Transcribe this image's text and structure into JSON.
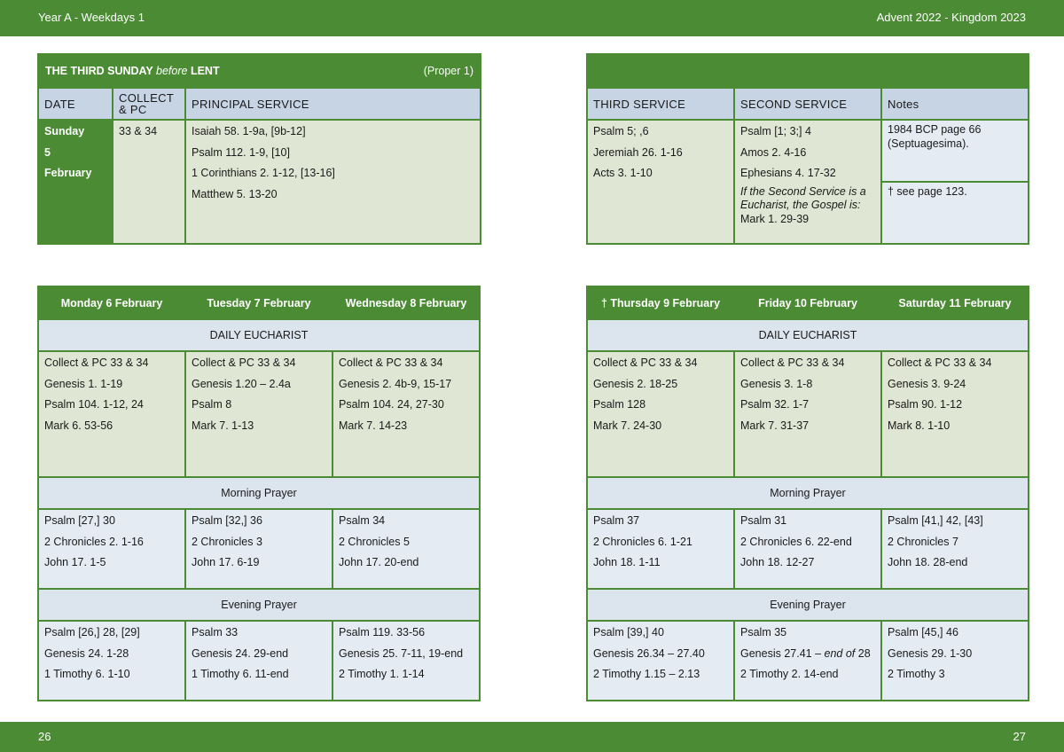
{
  "header": {
    "left": "Year A - Weekdays 1",
    "right": "Advent  2022 - Kingdom 2023"
  },
  "footer": {
    "left": "26",
    "right": "27"
  },
  "sunday": {
    "title_pre": "THE THIRD SUNDAY ",
    "title_em": "before",
    "title_post": " LENT",
    "proper": "(Proper 1)",
    "col_date": "DATE",
    "col_collect_1": "COLLECT",
    "col_collect_2": "& PC",
    "col_principal": "PRINCIPAL SERVICE",
    "date_lines": [
      "Sunday",
      "5",
      "February"
    ],
    "collect": "33 & 34",
    "principal": [
      "Isaiah 58. 1-9a, [9b-12]",
      "Psalm 112. 1-9, [10]",
      "1 Corinthians 2. 1-12, [13-16]",
      "Matthew 5. 13-20"
    ],
    "col_third": "THIRD SERVICE",
    "col_second": "SECOND SERVICE",
    "col_notes": "Notes",
    "third": [
      "Psalm 5; ,6",
      "Jeremiah 26. 1-16",
      "Acts 3. 1-10"
    ],
    "second": [
      "Psalm [1; 3;] 4",
      "Amos 2. 4-16",
      "Ephesians 4. 17-32"
    ],
    "second_note_1": "If the Second Service is a",
    "second_note_2": "Eucharist, the Gospel is:",
    "second_note_3": "Mark 1. 29-39",
    "notes_1a": "1984 BCP page 66",
    "notes_1b": "(Septuagesima).",
    "notes_2": "†  see page 123."
  },
  "weekdays_left": {
    "days": [
      "Monday 6 February",
      "Tuesday 7 February",
      "Wednesday 8 February"
    ],
    "euch_label": "DAILY EUCHARIST",
    "euch": [
      [
        "Collect & PC 33 & 34",
        "Genesis 1. 1-19",
        "Psalm 104. 1-12, 24",
        "Mark 6. 53-56"
      ],
      [
        "Collect & PC 33 & 34",
        "Genesis 1.20 – 2.4a",
        "Psalm 8",
        "Mark 7. 1-13"
      ],
      [
        "Collect & PC 33 & 34",
        "Genesis 2. 4b-9, 15-17",
        "Psalm 104. 24, 27-30",
        "Mark 7. 14-23"
      ]
    ],
    "mp_label": "Morning Prayer",
    "mp": [
      [
        "Psalm [27,] 30",
        "2 Chronicles 2. 1-16",
        "John 17. 1-5"
      ],
      [
        "Psalm [32,] 36",
        "2 Chronicles 3",
        "John 17. 6-19"
      ],
      [
        "Psalm 34",
        "2 Chronicles 5",
        "John 17. 20-end"
      ]
    ],
    "ep_label": "Evening Prayer",
    "ep": [
      [
        "Psalm [26,] 28, [29]",
        "Genesis 24. 1-28",
        "1 Timothy 6. 1-10"
      ],
      [
        "Psalm 33",
        "Genesis 24. 29-end",
        "1 Timothy 6. 11-end"
      ],
      [
        "Psalm 119. 33-56",
        "Genesis 25. 7-11, 19-end",
        "2 Timothy 1. 1-14"
      ]
    ]
  },
  "weekdays_right": {
    "days": [
      "† Thursday 9 February",
      "Friday 10 February",
      "Saturday 11 February"
    ],
    "euch_label": "DAILY EUCHARIST",
    "euch": [
      [
        "Collect & PC 33 & 34",
        "Genesis 2. 18-25",
        "Psalm 128",
        "Mark 7. 24-30"
      ],
      [
        "Collect & PC 33 & 34",
        "Genesis 3. 1-8",
        "Psalm 32. 1-7",
        "Mark 7. 31-37"
      ],
      [
        "Collect & PC 33 & 34",
        "Genesis 3. 9-24",
        "Psalm 90. 1-12",
        "Mark 8. 1-10"
      ]
    ],
    "mp_label": "Morning Prayer",
    "mp": [
      [
        "Psalm 37",
        "2 Chronicles 6. 1-21",
        "John 18. 1-11"
      ],
      [
        "Psalm 31",
        "2 Chronicles 6. 22-end",
        "John 18. 12-27"
      ],
      [
        "Psalm [41,] 42, [43]",
        "2 Chronicles 7",
        "John 18. 28-end"
      ]
    ],
    "ep_label": "Evening Prayer",
    "ep": [
      [
        "Psalm [39,] 40",
        "Genesis 26.34 – 27.40",
        "2 Timothy 1.15 – 2.13"
      ],
      [
        "Psalm 35",
        "Genesis 27.41 – ",
        "2 Timothy 2. 14-end"
      ],
      [
        "Psalm [45,] 46",
        "Genesis 29. 1-30",
        "2 Timothy 3"
      ]
    ],
    "ep_fri_italic": "end of",
    "ep_fri_tail": " 28"
  }
}
